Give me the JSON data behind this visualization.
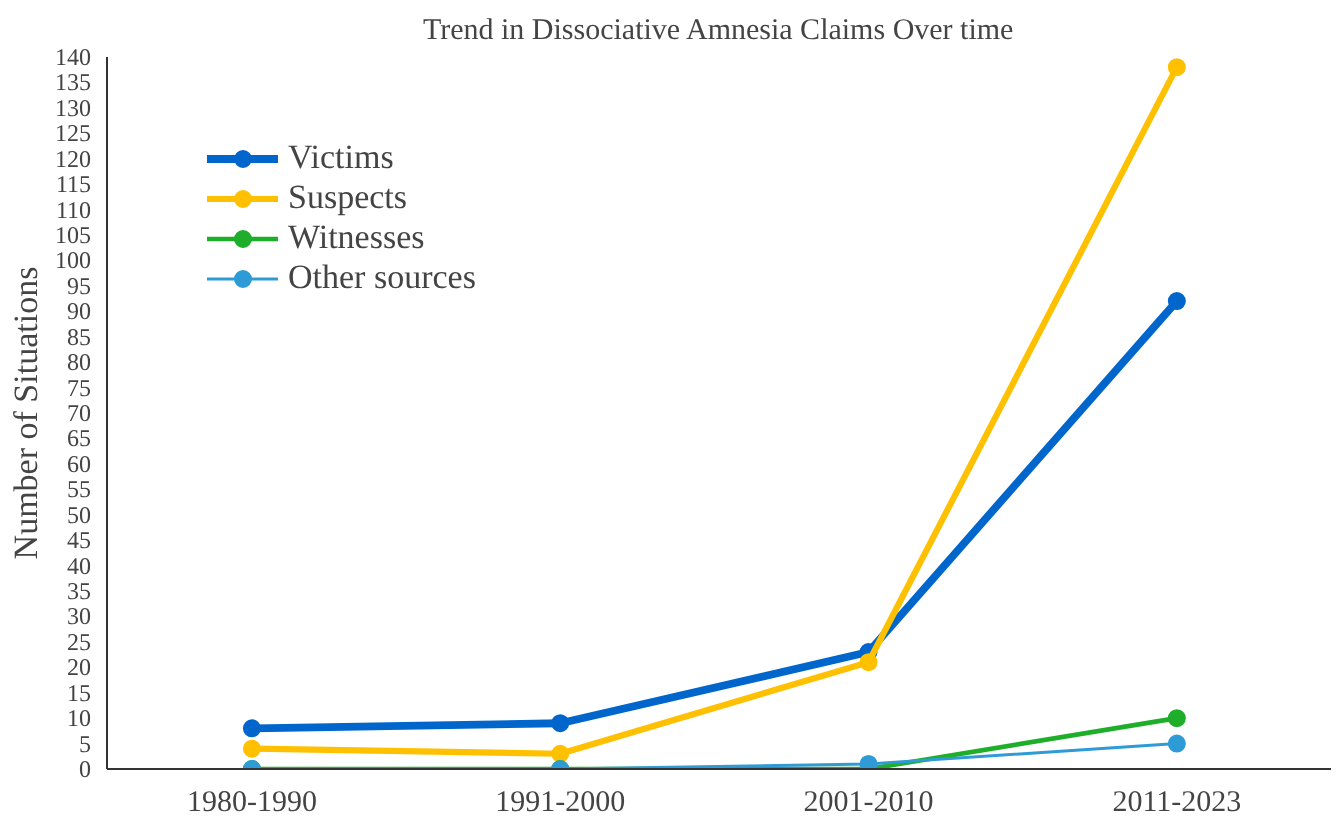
{
  "chart_data": {
    "type": "line",
    "title": "Trend in Dissociative Amnesia Claims Over time",
    "ylabel": "Number of Situations",
    "categories": [
      "1980-1990",
      "1991-2000",
      "2001-2010",
      "2011-2023"
    ],
    "series": [
      {
        "name": "Victims",
        "color": "#0066cc",
        "values": [
          8,
          9,
          23,
          92
        ]
      },
      {
        "name": "Suspects",
        "color": "#ffc000",
        "values": [
          4,
          3,
          21,
          138
        ]
      },
      {
        "name": "Witnesses",
        "color": "#1fae2a",
        "values": [
          0,
          0,
          0,
          10
        ]
      },
      {
        "name": "Other sources",
        "color": "#2e9bd6",
        "values": [
          0,
          0,
          1,
          5
        ]
      }
    ],
    "ylim": [
      0,
      140
    ],
    "yticks": [
      0,
      5,
      10,
      15,
      20,
      25,
      30,
      35,
      40,
      45,
      50,
      55,
      60,
      65,
      70,
      75,
      80,
      85,
      90,
      95,
      100,
      105,
      110,
      115,
      120,
      125,
      130,
      135,
      140
    ],
    "grid": false,
    "legend": "top left",
    "marker": "circle",
    "line_style": "solid"
  }
}
